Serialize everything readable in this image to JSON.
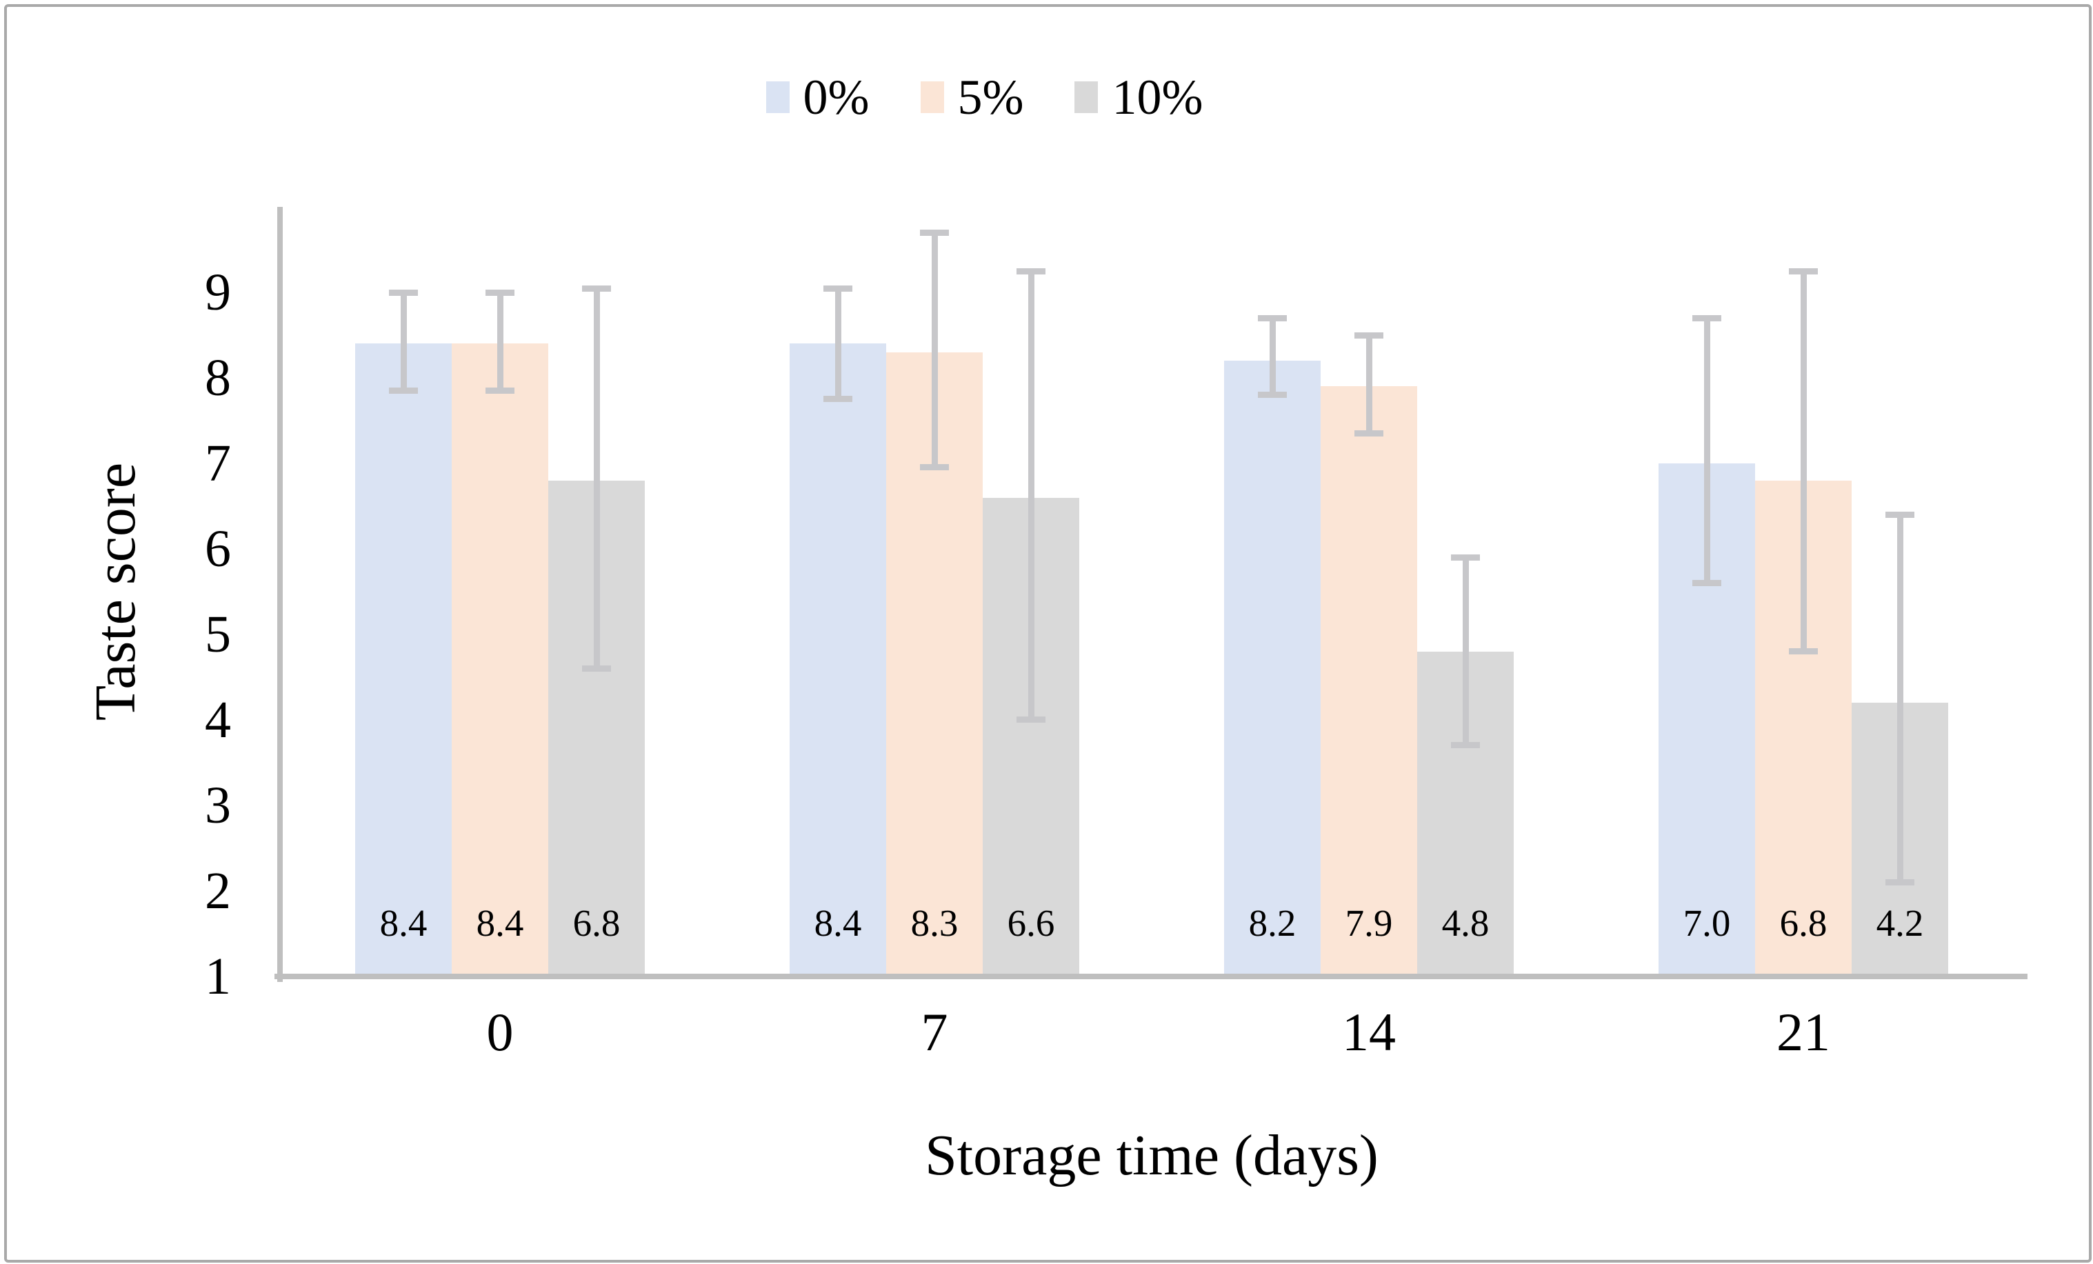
{
  "chart_data": {
    "type": "bar",
    "title": "",
    "xlabel": "Storage time (days)",
    "ylabel": "Taste score",
    "categories": [
      "0",
      "7",
      "14",
      "21"
    ],
    "y_axis": {
      "min": 1,
      "max": 10,
      "ticks": [
        9,
        8,
        7,
        6,
        5,
        4,
        3,
        2,
        1
      ]
    },
    "grid": false,
    "legend_position": "top-center",
    "series": [
      {
        "name": "0%",
        "color": "#dae3f3",
        "values": [
          8.4,
          8.4,
          8.2,
          7.0
        ],
        "value_labels": [
          "8.4",
          "8.4",
          "8.2",
          "7.0"
        ],
        "error_top": [
          9.0,
          9.05,
          8.7,
          8.7
        ],
        "error_bottom": [
          7.85,
          7.75,
          7.8,
          5.6
        ]
      },
      {
        "name": "5%",
        "color": "#fbe5d6",
        "values": [
          8.4,
          8.3,
          7.9,
          6.8
        ],
        "value_labels": [
          "8.4",
          "8.3",
          "7.9",
          "6.8"
        ],
        "error_top": [
          9.0,
          9.7,
          8.5,
          9.25
        ],
        "error_bottom": [
          7.85,
          6.95,
          7.35,
          4.8
        ]
      },
      {
        "name": "10%",
        "color": "#d9d9d9",
        "values": [
          6.8,
          6.6,
          4.8,
          4.2
        ],
        "value_labels": [
          "6.8",
          "6.6",
          "4.8",
          "4.2"
        ],
        "error_top": [
          9.05,
          9.25,
          5.9,
          6.4
        ],
        "error_bottom": [
          4.6,
          4.0,
          3.7,
          2.1
        ]
      }
    ],
    "colors": {
      "error_bar": "#c7c7ca",
      "axis_line": "#bfbfbf",
      "border": "#a9a9a9",
      "text": "#000000"
    }
  }
}
